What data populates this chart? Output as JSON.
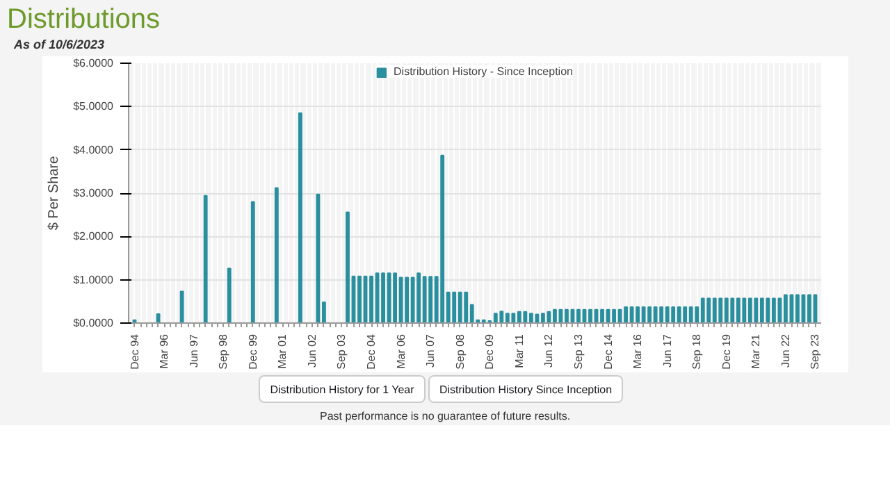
{
  "chart_data": {
    "type": "bar",
    "title": "Distributions",
    "subtitle": "As of 10/6/2023",
    "ylabel": "$ Per Share",
    "categories": [
      "Dec 94",
      null,
      null,
      null,
      null,
      "Mar 96",
      null,
      null,
      null,
      null,
      "Jun 97",
      null,
      null,
      null,
      null,
      "Sep 98",
      null,
      null,
      null,
      null,
      "Dec 99",
      null,
      null,
      null,
      null,
      "Mar 01",
      null,
      null,
      null,
      null,
      "Jun 02",
      null,
      null,
      null,
      null,
      "Sep 03",
      null,
      null,
      null,
      null,
      "Dec 04",
      null,
      null,
      null,
      null,
      "Mar 06",
      null,
      null,
      null,
      null,
      "Jun 07",
      null,
      null,
      null,
      null,
      "Sep 08",
      null,
      null,
      null,
      null,
      "Dec 09",
      null,
      null,
      null,
      null,
      "Mar 11",
      null,
      null,
      null,
      null,
      "Jun 12",
      null,
      null,
      null,
      null,
      "Sep 13",
      null,
      null,
      null,
      null,
      "Dec 14",
      null,
      null,
      null,
      null,
      "Mar 16",
      null,
      null,
      null,
      null,
      "Jun 17",
      null,
      null,
      null,
      null,
      "Sep 18",
      null,
      null,
      null,
      null,
      "Dec 19",
      null,
      null,
      null,
      null,
      "Mar 21",
      null,
      null,
      null,
      null,
      "Jun 22",
      null,
      null,
      null,
      null,
      "Sep 23"
    ],
    "series": [
      {
        "name": "Distribution History - Since Inception",
        "color": "#2a8f9e",
        "values": [
          0.07,
          null,
          null,
          null,
          0.21,
          null,
          null,
          null,
          0.73,
          null,
          null,
          null,
          2.94,
          null,
          null,
          null,
          1.26,
          null,
          null,
          null,
          2.8,
          null,
          null,
          null,
          3.12,
          null,
          null,
          null,
          4.85,
          null,
          null,
          2.97,
          0.48,
          null,
          null,
          null,
          2.56,
          1.08,
          1.08,
          1.08,
          1.08,
          1.15,
          1.15,
          1.15,
          1.15,
          1.05,
          1.05,
          1.05,
          1.15,
          1.07,
          1.07,
          1.07,
          3.87,
          0.71,
          0.71,
          0.71,
          0.71,
          0.42,
          0.07,
          0.07,
          0.05,
          0.22,
          0.27,
          0.22,
          0.22,
          0.26,
          0.26,
          0.22,
          0.2,
          0.22,
          0.26,
          0.31,
          0.31,
          0.31,
          0.31,
          0.31,
          0.31,
          0.31,
          0.31,
          0.31,
          0.31,
          0.31,
          0.31,
          0.37,
          0.37,
          0.37,
          0.37,
          0.37,
          0.37,
          0.37,
          0.37,
          0.37,
          0.37,
          0.37,
          0.37,
          0.37,
          0.57,
          0.57,
          0.57,
          0.57,
          0.57,
          0.57,
          0.57,
          0.57,
          0.57,
          0.57,
          0.57,
          0.57,
          0.57,
          0.57,
          0.65,
          0.65,
          0.65,
          0.65,
          0.65,
          0.65
        ]
      }
    ],
    "ylim": [
      0,
      6
    ],
    "yticks": [
      {
        "value": 0,
        "label": "$0.0000"
      },
      {
        "value": 1,
        "label": "$1.0000"
      },
      {
        "value": 2,
        "label": "$2.0000"
      },
      {
        "value": 3,
        "label": "$3.0000"
      },
      {
        "value": 4,
        "label": "$4.0000"
      },
      {
        "value": 5,
        "label": "$5.0000"
      },
      {
        "value": 6,
        "label": "$6.0000"
      }
    ],
    "grid": true,
    "legend": "top",
    "annotations": [
      "Distribution History for 1 Year",
      "Distribution History Since Inception",
      "Past performance is no guarantee of future results."
    ]
  }
}
